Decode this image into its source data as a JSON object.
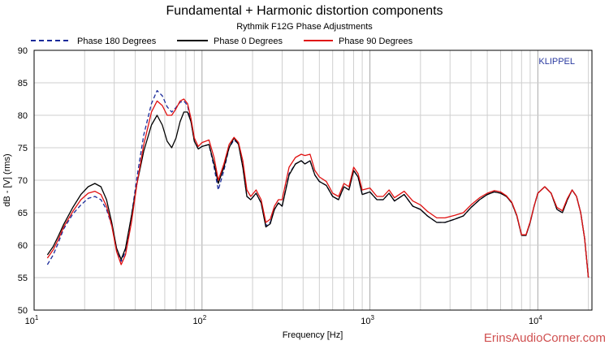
{
  "chart_data": {
    "type": "line",
    "title": "Fundamental + Harmonic distortion components",
    "subtitle": "Rythmik F12G Phase Adjustments",
    "xlabel": "Frequency [Hz]",
    "ylabel": "dB - [V] (rms)",
    "x_scale": "log",
    "xlim": [
      10,
      21000
    ],
    "ylim": [
      50,
      90
    ],
    "grid": true,
    "legend_position": "top",
    "x_ticks": [
      {
        "value": 10,
        "base": "10",
        "exp": "1"
      },
      {
        "value": 100,
        "base": "10",
        "exp": "2"
      },
      {
        "value": 1000,
        "base": "10",
        "exp": "3"
      },
      {
        "value": 10000,
        "base": "10",
        "exp": "4"
      }
    ],
    "y_ticks": [
      "50",
      "55",
      "60",
      "65",
      "70",
      "75",
      "80",
      "85",
      "90"
    ],
    "annotation": "KLIPPEL",
    "watermark": "ErinsAudioCorner.com",
    "series": [
      {
        "name": "Phase 180 Degrees",
        "color": "#1a2a9a",
        "style": "dashed",
        "x": [
          12,
          13,
          14,
          15,
          17,
          19,
          21,
          23,
          25,
          27,
          29,
          31,
          33,
          35,
          38,
          41,
          45,
          50,
          54,
          58,
          62,
          66,
          70,
          74,
          78,
          82,
          86,
          90,
          95,
          100,
          110,
          118,
          125,
          135,
          145,
          155,
          165,
          175,
          185,
          195,
          210,
          225,
          240,
          255,
          270,
          285,
          300,
          330,
          360,
          390,
          410,
          440,
          470,
          500,
          550,
          600,
          650,
          700,
          750,
          800,
          850,
          900,
          1000,
          1100,
          1200,
          1300,
          1400,
          1600,
          1800,
          2000,
          2200,
          2500,
          2800,
          3200,
          3600,
          4000,
          4500,
          5000,
          5500,
          6000,
          6500,
          7000,
          7500,
          8000,
          8500,
          9000,
          9500,
          10000,
          11000,
          12000,
          13000,
          14000,
          15000,
          16000,
          17000,
          18000,
          19000,
          20000
        ],
        "y": [
          57,
          58.5,
          60.5,
          62.5,
          64.8,
          66.2,
          67.2,
          67.5,
          67.0,
          65.5,
          63.0,
          59.5,
          57.5,
          59.0,
          64.5,
          70.5,
          77.0,
          81.8,
          83.8,
          83.0,
          81.3,
          80.5,
          81.2,
          82.0,
          82.2,
          81.5,
          79.0,
          76.0,
          74.8,
          75.2,
          75.5,
          72.0,
          68.5,
          71.5,
          75.0,
          76.2,
          75.6,
          72.0,
          67.5,
          67.0,
          68.0,
          66.5,
          63.0,
          63.5,
          65.5,
          66.5,
          66.0,
          71.0,
          72.5,
          73.0,
          72.5,
          73.0,
          70.8,
          69.8,
          69.2,
          67.5,
          67.0,
          69.0,
          68.5,
          71.5,
          70.5,
          67.8,
          68.2,
          67.0,
          67.0,
          68.0,
          66.8,
          67.8,
          66.0,
          65.5,
          64.5,
          63.5,
          63.5,
          64.0,
          64.5,
          65.8,
          67.0,
          67.8,
          68.2,
          68.0,
          67.5,
          66.5,
          64.5,
          61.5,
          61.5,
          63.5,
          66.0,
          68.0,
          69.0,
          68.0,
          65.5,
          65.0,
          67.0,
          68.5,
          67.5,
          65.0,
          61.0,
          55.0
        ]
      },
      {
        "name": "Phase 0 Degrees",
        "color": "#000000",
        "style": "solid",
        "x": [
          12,
          13,
          14,
          15,
          17,
          19,
          21,
          23,
          25,
          27,
          29,
          31,
          33,
          35,
          38,
          41,
          45,
          50,
          54,
          58,
          62,
          66,
          70,
          74,
          78,
          82,
          86,
          90,
          95,
          100,
          110,
          118,
          125,
          135,
          145,
          155,
          165,
          175,
          185,
          195,
          210,
          225,
          240,
          255,
          270,
          285,
          300,
          330,
          360,
          390,
          410,
          440,
          470,
          500,
          550,
          600,
          650,
          700,
          750,
          800,
          850,
          900,
          1000,
          1100,
          1200,
          1300,
          1400,
          1600,
          1800,
          2000,
          2200,
          2500,
          2800,
          3200,
          3600,
          4000,
          4500,
          5000,
          5500,
          6000,
          6500,
          7000,
          7500,
          8000,
          8500,
          9000,
          9500,
          10000,
          11000,
          12000,
          13000,
          14000,
          15000,
          16000,
          17000,
          18000,
          19000,
          20000
        ],
        "y": [
          58.5,
          59.8,
          61.5,
          63.2,
          65.8,
          67.8,
          69.0,
          69.5,
          69.0,
          67.0,
          63.5,
          59.5,
          57.8,
          59.5,
          64.5,
          69.5,
          74.5,
          78.5,
          80.0,
          78.5,
          76.0,
          75.0,
          76.5,
          79.0,
          80.5,
          80.5,
          79.0,
          76.0,
          74.8,
          75.2,
          75.5,
          72.5,
          69.5,
          72.0,
          75.0,
          76.5,
          75.5,
          72.0,
          67.5,
          67.0,
          68.0,
          66.5,
          62.8,
          63.3,
          65.5,
          66.5,
          66.0,
          70.8,
          72.5,
          73.0,
          72.5,
          73.0,
          70.8,
          69.8,
          69.2,
          67.5,
          67.0,
          69.0,
          68.5,
          71.5,
          70.5,
          67.8,
          68.2,
          67.0,
          67.0,
          68.0,
          66.8,
          67.8,
          66.0,
          65.5,
          64.5,
          63.5,
          63.5,
          64.0,
          64.5,
          65.8,
          67.0,
          67.8,
          68.2,
          68.0,
          67.5,
          66.5,
          64.5,
          61.5,
          61.5,
          63.5,
          66.0,
          68.0,
          69.0,
          68.0,
          65.5,
          65.0,
          67.0,
          68.5,
          67.5,
          65.0,
          61.0,
          55.0
        ]
      },
      {
        "name": "Phase 90 Degrees",
        "color": "#e01010",
        "style": "solid",
        "x": [
          12,
          13,
          14,
          15,
          17,
          19,
          21,
          23,
          25,
          27,
          29,
          31,
          33,
          35,
          38,
          41,
          45,
          50,
          54,
          58,
          62,
          66,
          70,
          74,
          78,
          82,
          86,
          90,
          95,
          100,
          110,
          118,
          125,
          135,
          145,
          155,
          165,
          175,
          185,
          195,
          210,
          225,
          240,
          255,
          270,
          285,
          300,
          330,
          360,
          390,
          410,
          440,
          470,
          500,
          550,
          600,
          650,
          700,
          750,
          800,
          850,
          900,
          1000,
          1100,
          1200,
          1300,
          1400,
          1600,
          1800,
          2000,
          2200,
          2500,
          2800,
          3200,
          3600,
          4000,
          4500,
          5000,
          5500,
          6000,
          6500,
          7000,
          7500,
          8000,
          8500,
          9000,
          9500,
          10000,
          11000,
          12000,
          13000,
          14000,
          15000,
          16000,
          17000,
          18000,
          19000,
          20000
        ],
        "y": [
          58.0,
          59.3,
          61.0,
          62.8,
          65.2,
          67.0,
          68.0,
          68.3,
          67.8,
          66.0,
          63.0,
          59.0,
          57.0,
          58.5,
          63.5,
          69.5,
          75.5,
          80.5,
          82.2,
          81.5,
          80.0,
          80.0,
          81.0,
          82.2,
          82.5,
          81.8,
          79.5,
          76.5,
          75.2,
          75.8,
          76.2,
          73.5,
          70.0,
          72.5,
          75.5,
          76.6,
          75.8,
          73.0,
          68.5,
          67.5,
          68.5,
          67.0,
          63.5,
          64.0,
          66.0,
          67.0,
          67.0,
          72.0,
          73.5,
          74.0,
          73.8,
          74.0,
          71.5,
          70.5,
          69.8,
          68.0,
          67.5,
          69.5,
          69.0,
          72.0,
          71.0,
          68.5,
          68.8,
          67.5,
          67.5,
          68.5,
          67.3,
          68.3,
          66.8,
          66.2,
          65.2,
          64.2,
          64.2,
          64.6,
          65.0,
          66.2,
          67.3,
          68.0,
          68.4,
          68.2,
          67.6,
          66.6,
          64.6,
          61.6,
          61.6,
          63.6,
          66.0,
          68.0,
          69.0,
          68.0,
          65.8,
          65.3,
          67.2,
          68.5,
          67.5,
          65.0,
          61.0,
          55.0
        ]
      }
    ]
  }
}
